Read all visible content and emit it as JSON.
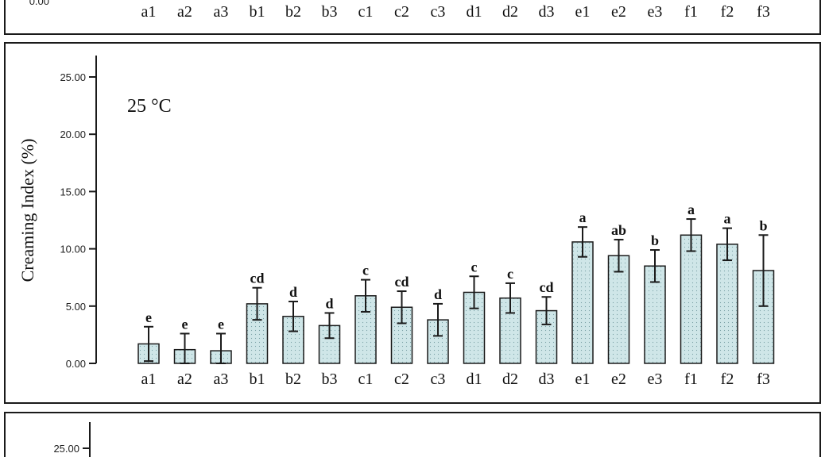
{
  "top_panel": {
    "categories": [
      "a1",
      "a2",
      "a3",
      "b1",
      "b2",
      "b3",
      "c1",
      "c2",
      "c3",
      "d1",
      "d2",
      "d3",
      "e1",
      "e2",
      "e3",
      "f1",
      "f2",
      "f3"
    ],
    "ytick_partial": "0.00"
  },
  "chart_data": {
    "type": "bar",
    "annotation": "25 °C",
    "ylabel": "Creaming Index (%)",
    "xlabel": "",
    "ylim": [
      0,
      25
    ],
    "yticks": [
      "0.00",
      "5.00",
      "10.00",
      "15.00",
      "20.00",
      "25.00"
    ],
    "categories": [
      "a1",
      "a2",
      "a3",
      "b1",
      "b2",
      "b3",
      "c1",
      "c2",
      "c3",
      "d1",
      "d2",
      "d3",
      "e1",
      "e2",
      "e3",
      "f1",
      "f2",
      "f3"
    ],
    "values": [
      1.7,
      1.2,
      1.1,
      5.2,
      4.1,
      3.3,
      5.9,
      4.9,
      3.8,
      6.2,
      5.7,
      4.6,
      10.6,
      9.4,
      8.5,
      11.2,
      10.4,
      8.1
    ],
    "errors": [
      1.5,
      1.4,
      1.5,
      1.4,
      1.3,
      1.1,
      1.4,
      1.4,
      1.4,
      1.4,
      1.3,
      1.2,
      1.3,
      1.4,
      1.4,
      1.4,
      1.4,
      3.1
    ],
    "significance": [
      "e",
      "e",
      "e",
      "cd",
      "d",
      "d",
      "c",
      "cd",
      "d",
      "c",
      "c",
      "cd",
      "a",
      "ab",
      "b",
      "a",
      "a",
      "b"
    ],
    "bar_color": "#cfe6e8",
    "grid": false
  },
  "bottom_panel": {
    "ytick_partial": "25.00"
  }
}
